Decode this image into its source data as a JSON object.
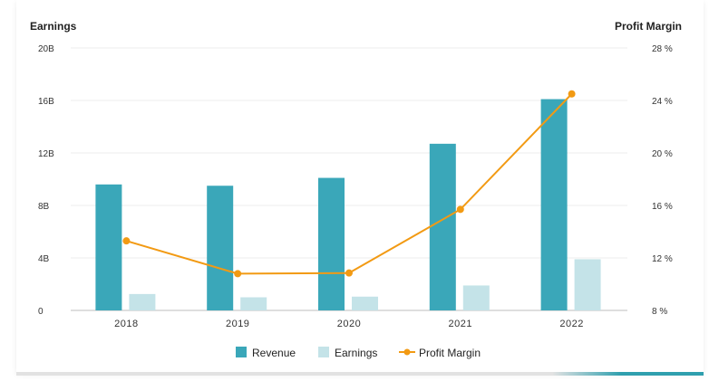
{
  "chart_data": {
    "type": "bar",
    "title": "",
    "left_axis_title": "Earnings",
    "right_axis_title": "Profit Margin",
    "categories": [
      "2018",
      "2019",
      "2020",
      "2021",
      "2022"
    ],
    "y_left": {
      "min": 0,
      "max": 20,
      "ticks": [
        0,
        4,
        8,
        12,
        16,
        20
      ],
      "tick_labels": [
        "0",
        "4B",
        "8B",
        "12B",
        "16B",
        "20B"
      ]
    },
    "y_right": {
      "min": 8,
      "max": 28,
      "ticks": [
        8,
        12,
        16,
        20,
        24,
        28
      ],
      "tick_labels": [
        "8 %",
        "12 %",
        "16 %",
        "20 %",
        "24 %",
        "28 %"
      ]
    },
    "series": [
      {
        "name": "Revenue",
        "type": "bar",
        "axis": "left",
        "color": "#3aa7b9",
        "values": [
          9.6,
          9.5,
          10.1,
          12.7,
          16.1
        ]
      },
      {
        "name": "Earnings",
        "type": "bar",
        "axis": "left",
        "color": "#c4e3e8",
        "values": [
          1.25,
          1.0,
          1.05,
          1.9,
          3.9
        ]
      },
      {
        "name": "Profit Margin",
        "type": "line",
        "axis": "right",
        "color": "#f29a13",
        "values": [
          13.3,
          10.8,
          10.85,
          15.7,
          24.5
        ]
      }
    ],
    "grid": true,
    "legend_position": "bottom-center"
  },
  "legend": {
    "revenue": "Revenue",
    "earnings": "Earnings",
    "profit_margin": "Profit Margin"
  }
}
